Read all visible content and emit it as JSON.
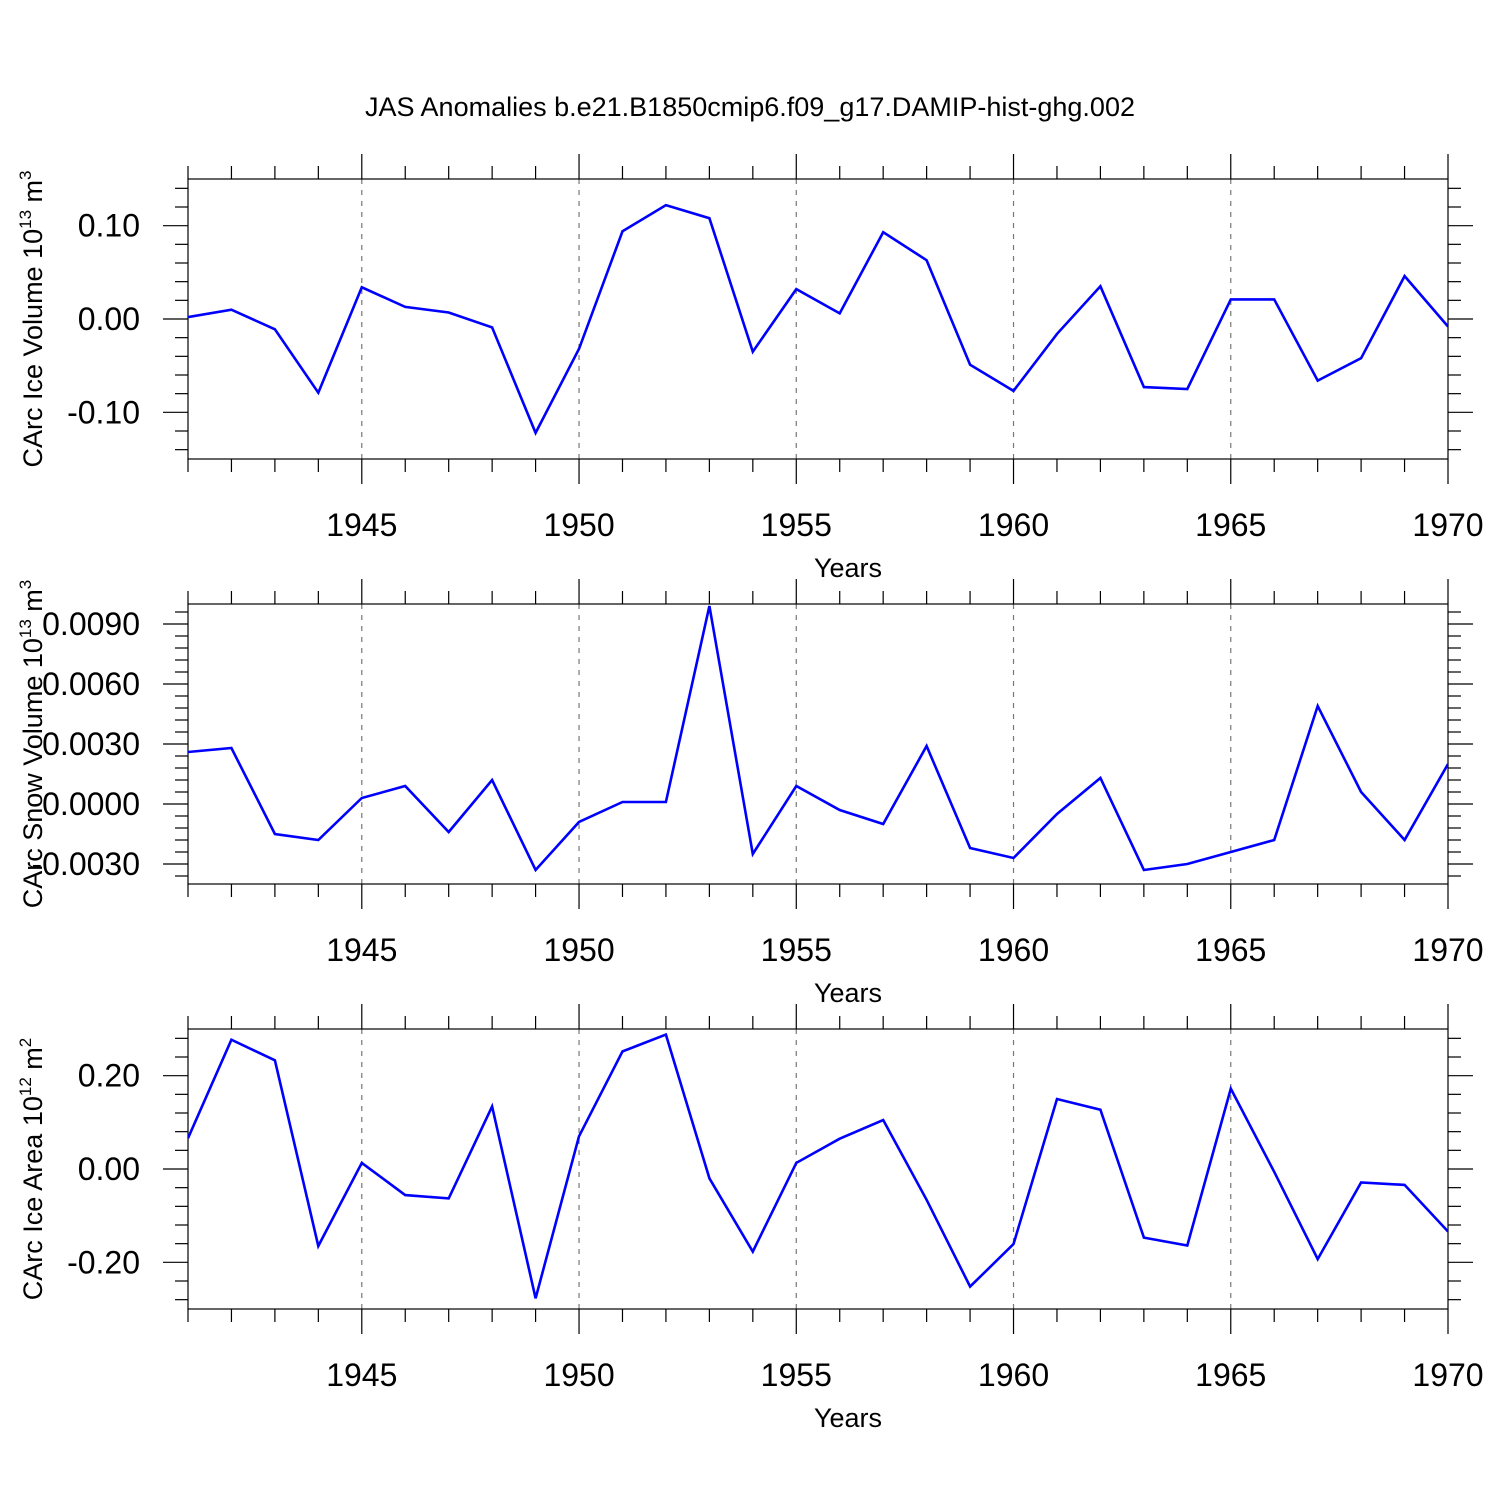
{
  "title": "JAS Anomalies b.e21.B1850cmip6.f09_g17.DAMIP-hist-ghg.002",
  "colors": {
    "series": "#0000ff",
    "axis": "#000000",
    "grid": "#777777"
  },
  "chart_data": [
    {
      "type": "line",
      "ylabel": {
        "text": "CArc Ice Volume 10",
        "exp": "13",
        "unit": " m",
        "unit_exp": "3"
      },
      "xlabel": "Years",
      "xlim": [
        1941,
        1970
      ],
      "ylim": [
        -0.15,
        0.15
      ],
      "yticks": [
        -0.1,
        0.0,
        0.1
      ],
      "ytick_labels": [
        "-0.10",
        "0.00",
        "0.10"
      ],
      "xticks": [
        1945,
        1950,
        1955,
        1960,
        1965,
        1970
      ],
      "xtick_labels": [
        "1945",
        "1950",
        "1955",
        "1960",
        "1965",
        "1970"
      ],
      "grid": "dashed vertical at major x ticks",
      "x": [
        1941,
        1942,
        1943,
        1944,
        1945,
        1946,
        1947,
        1948,
        1949,
        1950,
        1951,
        1952,
        1953,
        1954,
        1955,
        1956,
        1957,
        1958,
        1959,
        1960,
        1961,
        1962,
        1963,
        1964,
        1965,
        1966,
        1967,
        1968,
        1969,
        1970
      ],
      "values": [
        0.002,
        0.01,
        -0.011,
        -0.079,
        0.034,
        0.013,
        0.007,
        -0.009,
        -0.122,
        -0.032,
        0.094,
        0.122,
        0.108,
        -0.035,
        0.032,
        0.006,
        0.093,
        0.063,
        -0.049,
        -0.077,
        -0.016,
        0.035,
        -0.073,
        -0.075,
        0.021,
        0.021,
        -0.066,
        -0.042,
        0.046,
        -0.008
      ]
    },
    {
      "type": "line",
      "ylabel": {
        "text": "CArc Snow Volume 10",
        "exp": "13",
        "unit": " m",
        "unit_exp": "3"
      },
      "xlabel": "Years",
      "xlim": [
        1941,
        1970
      ],
      "ylim": [
        -0.004,
        0.01
      ],
      "yticks": [
        -0.003,
        0.0,
        0.003,
        0.006,
        0.009
      ],
      "ytick_labels": [
        "-0.0030",
        "0.0000",
        "0.0030",
        "0.0060",
        "0.0090"
      ],
      "xticks": [
        1945,
        1950,
        1955,
        1960,
        1965,
        1970
      ],
      "xtick_labels": [
        "1945",
        "1950",
        "1955",
        "1960",
        "1965",
        "1970"
      ],
      "grid": "dashed vertical at major x ticks",
      "x": [
        1941,
        1942,
        1943,
        1944,
        1945,
        1946,
        1947,
        1948,
        1949,
        1950,
        1951,
        1952,
        1953,
        1954,
        1955,
        1956,
        1957,
        1958,
        1959,
        1960,
        1961,
        1962,
        1963,
        1964,
        1965,
        1966,
        1967,
        1968,
        1969,
        1970
      ],
      "values": [
        0.0026,
        0.0028,
        -0.0015,
        -0.0018,
        0.0003,
        0.0009,
        -0.0014,
        0.0012,
        -0.0033,
        -0.0009,
        0.0001,
        0.0001,
        0.0099,
        -0.0025,
        0.0009,
        -0.0003,
        -0.001,
        0.0029,
        -0.0022,
        -0.0027,
        -0.0005,
        0.0013,
        -0.0033,
        -0.003,
        -0.0024,
        -0.0018,
        0.0049,
        0.0006,
        -0.0018,
        0.002
      ]
    },
    {
      "type": "line",
      "ylabel": {
        "text": "CArc Ice Area 10",
        "exp": "12",
        "unit": " m",
        "unit_exp": "2"
      },
      "xlabel": "Years",
      "xlim": [
        1941,
        1970
      ],
      "ylim": [
        -0.3,
        0.3
      ],
      "yticks": [
        -0.2,
        0.0,
        0.2
      ],
      "ytick_labels": [
        "-0.20",
        "0.00",
        "0.20"
      ],
      "xticks": [
        1945,
        1950,
        1955,
        1960,
        1965,
        1970
      ],
      "xtick_labels": [
        "1945",
        "1950",
        "1955",
        "1960",
        "1965",
        "1970"
      ],
      "grid": "dashed vertical at major x ticks",
      "x": [
        1941,
        1942,
        1943,
        1944,
        1945,
        1946,
        1947,
        1948,
        1949,
        1950,
        1951,
        1952,
        1953,
        1954,
        1955,
        1956,
        1957,
        1958,
        1959,
        1960,
        1961,
        1962,
        1963,
        1964,
        1965,
        1966,
        1967,
        1968,
        1969,
        1970
      ],
      "values": [
        0.066,
        0.277,
        0.233,
        -0.165,
        0.013,
        -0.056,
        -0.063,
        0.134,
        -0.277,
        0.07,
        0.252,
        0.288,
        -0.02,
        -0.177,
        0.013,
        0.065,
        0.105,
        -0.066,
        -0.252,
        -0.161,
        0.15,
        0.127,
        -0.147,
        -0.164,
        0.172,
        -0.006,
        -0.193,
        -0.029,
        -0.034,
        -0.134
      ]
    }
  ]
}
